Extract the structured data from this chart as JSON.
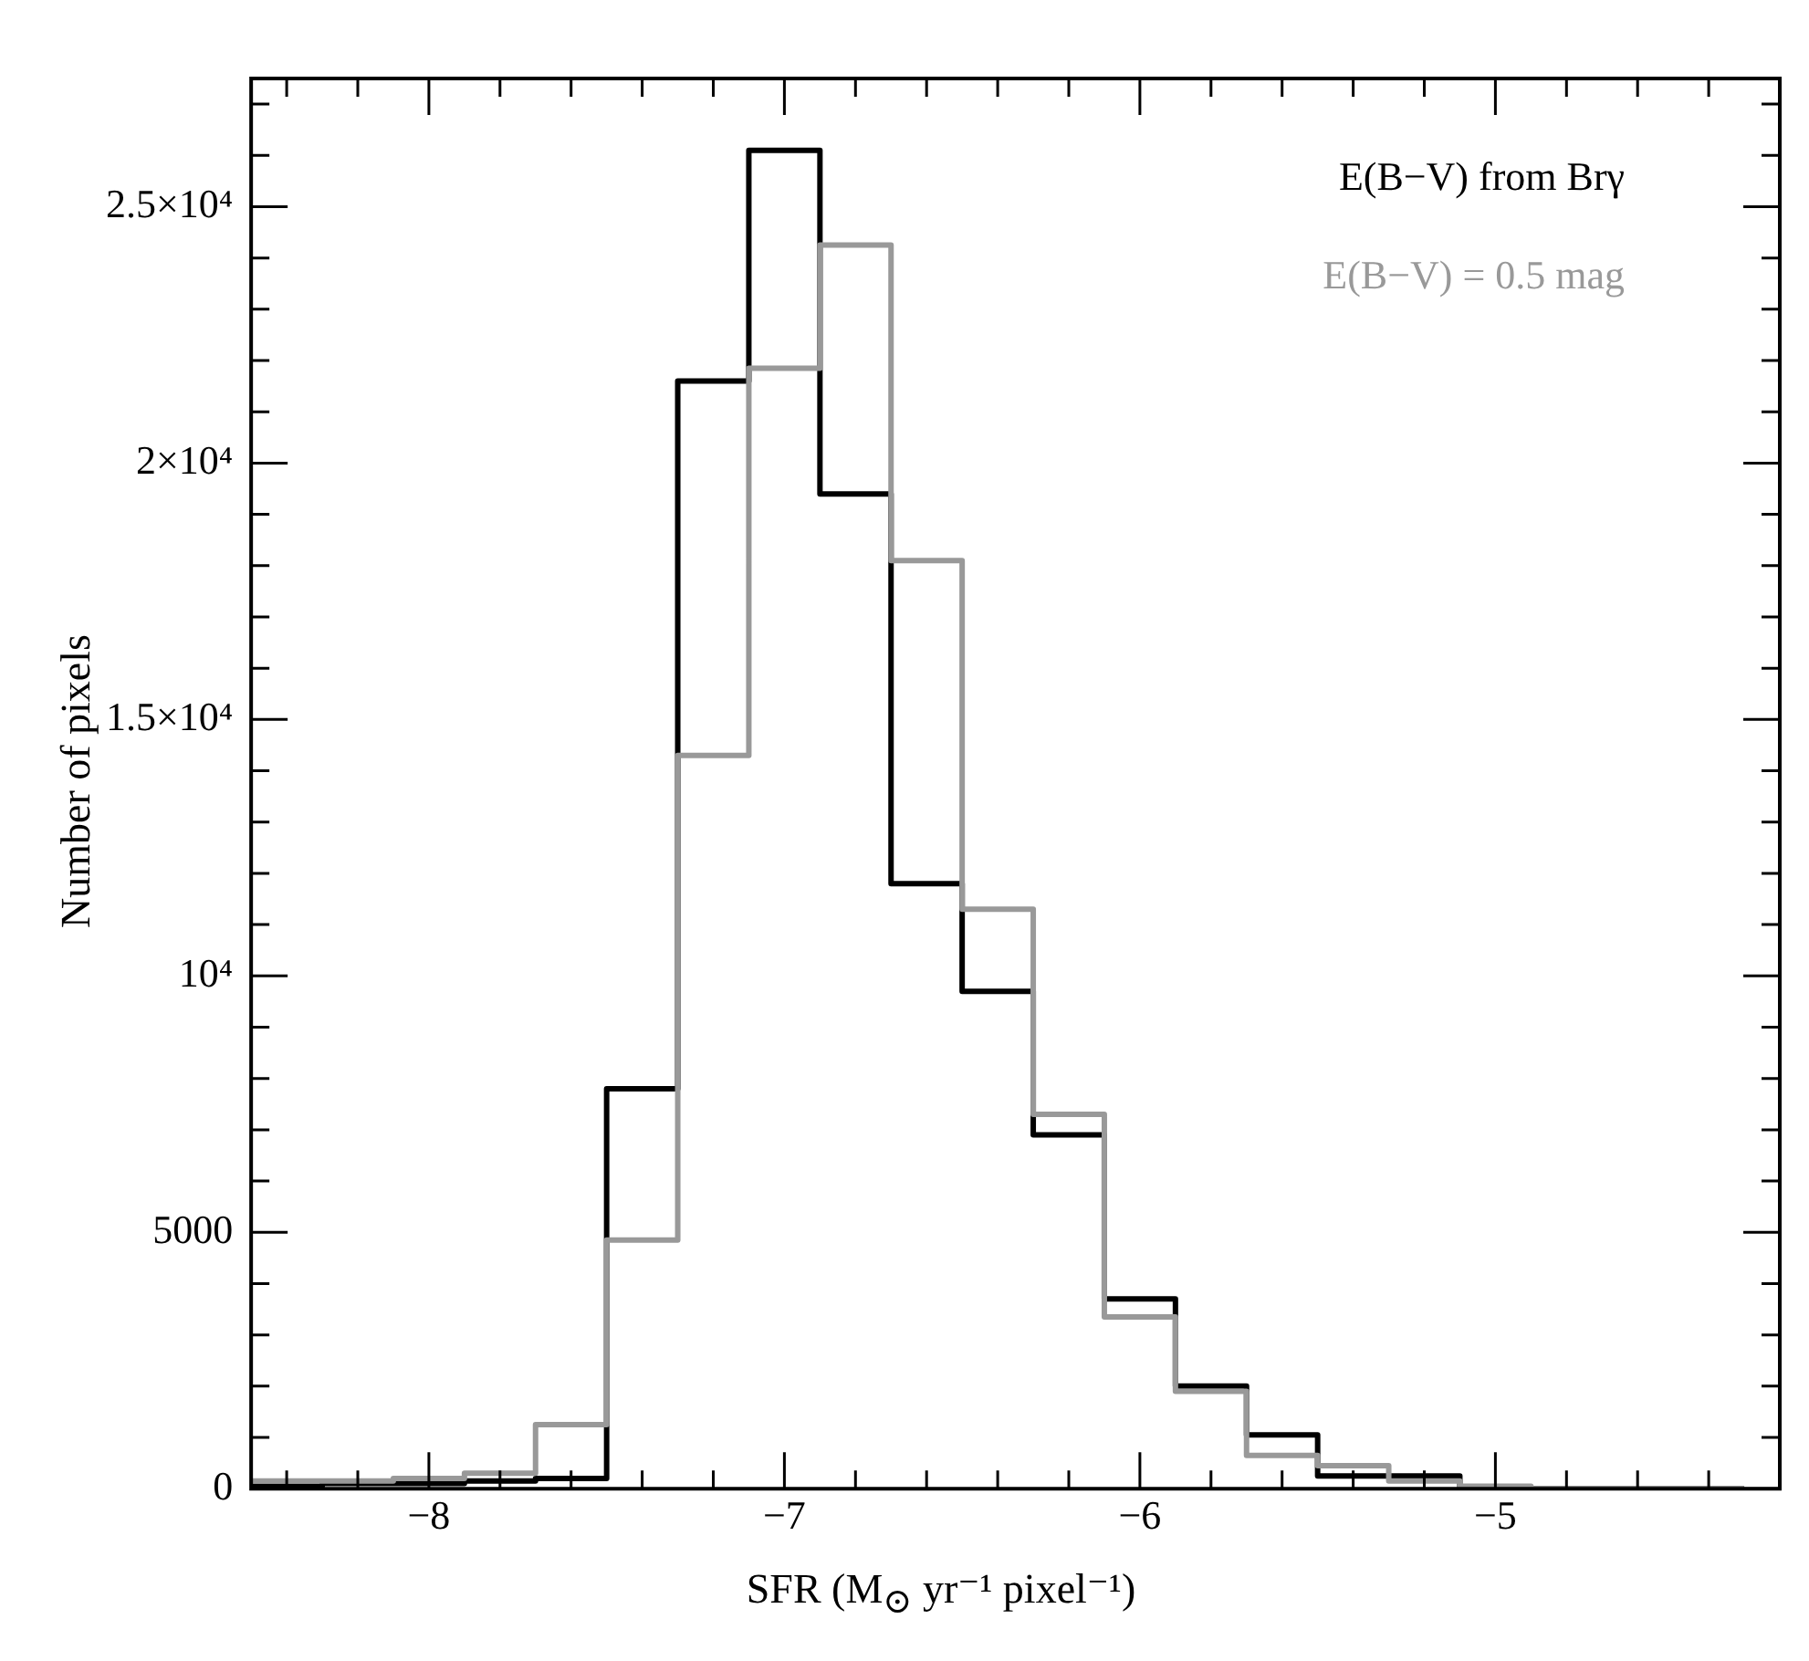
{
  "chart_data": {
    "type": "histogram",
    "xlabel": "SFR (M$_{⊙}$ yr⁻¹ pixel⁻¹)",
    "ylabel": "Number of pixels",
    "bins": [
      -8.5,
      -8.3,
      -8.1,
      -7.9,
      -7.7,
      -7.5,
      -7.3,
      -7.1,
      -6.9,
      -6.7,
      -6.5,
      -6.3,
      -6.1,
      -5.9,
      -5.7,
      -5.5,
      -5.3,
      -5.1,
      -4.9,
      -4.7,
      -4.5,
      -4.3
    ],
    "series": [
      {
        "name": "E(B−V) from Brγ",
        "color": "#000000",
        "values": [
          50,
          100,
          100,
          150,
          200,
          7800,
          21600,
          26100,
          19400,
          11800,
          9700,
          6900,
          3700,
          2000,
          1050,
          250,
          250,
          0,
          0,
          0,
          0
        ]
      },
      {
        "name": "E(B−V) = 0.5 mag",
        "color": "#999999",
        "values": [
          150,
          150,
          200,
          300,
          1250,
          4850,
          14300,
          21850,
          24250,
          18100,
          11300,
          7300,
          3350,
          1900,
          650,
          450,
          150,
          50,
          0,
          0,
          0
        ]
      }
    ],
    "xlim": [
      -8.5,
      -4.2
    ],
    "xticks": [
      {
        "value": -8.4,
        "label": null
      },
      {
        "value": -8.2,
        "label": null
      },
      {
        "value": -8,
        "label": "−8"
      },
      {
        "value": -7.8,
        "label": null
      },
      {
        "value": -7.6,
        "label": null
      },
      {
        "value": -7.4,
        "label": null
      },
      {
        "value": -7.2,
        "label": null
      },
      {
        "value": -7,
        "label": "−7"
      },
      {
        "value": -6.8,
        "label": null
      },
      {
        "value": -6.6,
        "label": null
      },
      {
        "value": -6.4,
        "label": null
      },
      {
        "value": -6.2,
        "label": null
      },
      {
        "value": -6,
        "label": "−6"
      },
      {
        "value": -5.8,
        "label": null
      },
      {
        "value": -5.6,
        "label": null
      },
      {
        "value": -5.4,
        "label": null
      },
      {
        "value": -5.2,
        "label": null
      },
      {
        "value": -5,
        "label": "−5"
      },
      {
        "value": -4.8,
        "label": null
      },
      {
        "value": -4.6,
        "label": null
      },
      {
        "value": -4.4,
        "label": null
      }
    ],
    "ylim": [
      0,
      27500
    ],
    "yticks": [
      0,
      {
        "value": 1000,
        "label": null
      },
      {
        "value": 2000,
        "label": null
      },
      {
        "value": 3000,
        "label": null
      },
      {
        "value": 4000,
        "label": null
      },
      5000,
      {
        "value": 6000,
        "label": null
      },
      {
        "value": 7000,
        "label": null
      },
      {
        "value": 8000,
        "label": null
      },
      {
        "value": 9000,
        "label": null
      },
      {
        "value": 10000,
        "label": "10⁴"
      },
      {
        "value": 11000,
        "label": null
      },
      {
        "value": 12000,
        "label": null
      },
      {
        "value": 13000,
        "label": null
      },
      {
        "value": 14000,
        "label": null
      },
      {
        "value": 15000,
        "label": "1.5×10⁴"
      },
      {
        "value": 16000,
        "label": null
      },
      {
        "value": 17000,
        "label": null
      },
      {
        "value": 18000,
        "label": null
      },
      {
        "value": 19000,
        "label": null
      },
      {
        "value": 20000,
        "label": "2×10⁴"
      },
      {
        "value": 21000,
        "label": null
      },
      {
        "value": 22000,
        "label": null
      },
      {
        "value": 23000,
        "label": null
      },
      {
        "value": 24000,
        "label": null
      },
      {
        "value": 25000,
        "label": "2.5×10⁴"
      },
      {
        "value": 26000,
        "label": null
      },
      {
        "value": 27000,
        "label": null
      }
    ],
    "legend": "top right"
  }
}
